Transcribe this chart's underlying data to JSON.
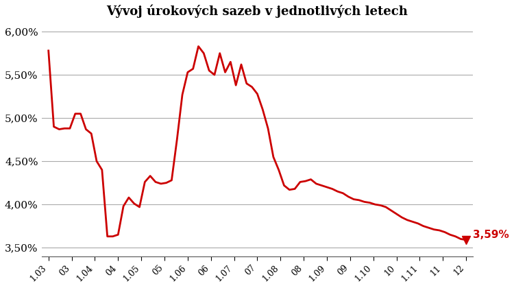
{
  "title": "Vývoj úrokových sazeb v jednotlivých letech",
  "background_color": "#ffffff",
  "line_color": "#cc0000",
  "annotation_color": "#cc0000",
  "annotation_text": "3,59%",
  "yticks": [
    3.5,
    4.0,
    4.5,
    5.0,
    5.5,
    6.0
  ],
  "ytick_labels": [
    "3,50%",
    "4,00%",
    "4,50%",
    "5,00%",
    "5,50%",
    "6,00%"
  ],
  "ylim": [
    3.4,
    6.1
  ],
  "xlabels": [
    "1.03",
    "03",
    "1.04",
    "04",
    "1.05",
    "05",
    "1.06",
    "06",
    "1.07",
    "07",
    "1.08",
    "08",
    "1.09",
    "09",
    "1.10",
    "10",
    "1.11",
    "11",
    "12"
  ],
  "data": [
    5.78,
    4.9,
    4.87,
    4.88,
    4.88,
    5.05,
    5.05,
    4.87,
    4.82,
    4.5,
    4.4,
    3.63,
    3.63,
    3.65,
    3.98,
    4.08,
    4.01,
    3.97,
    4.26,
    4.33,
    4.26,
    4.24,
    4.25,
    4.28,
    4.75,
    5.27,
    5.53,
    5.57,
    5.83,
    5.75,
    5.55,
    5.5,
    5.75,
    5.53,
    5.65,
    5.38,
    5.62,
    5.4,
    5.36,
    5.28,
    5.1,
    4.88,
    4.55,
    4.4,
    4.22,
    4.17,
    4.18,
    4.26,
    4.27,
    4.29,
    4.24,
    4.22,
    4.2,
    4.18,
    4.15,
    4.13,
    4.09,
    4.06,
    4.05,
    4.03,
    4.02,
    4.0,
    3.99,
    3.97,
    3.93,
    3.89,
    3.85,
    3.82,
    3.8,
    3.78,
    3.75,
    3.73,
    3.71,
    3.7,
    3.68,
    3.65,
    3.63,
    3.6,
    3.59
  ]
}
